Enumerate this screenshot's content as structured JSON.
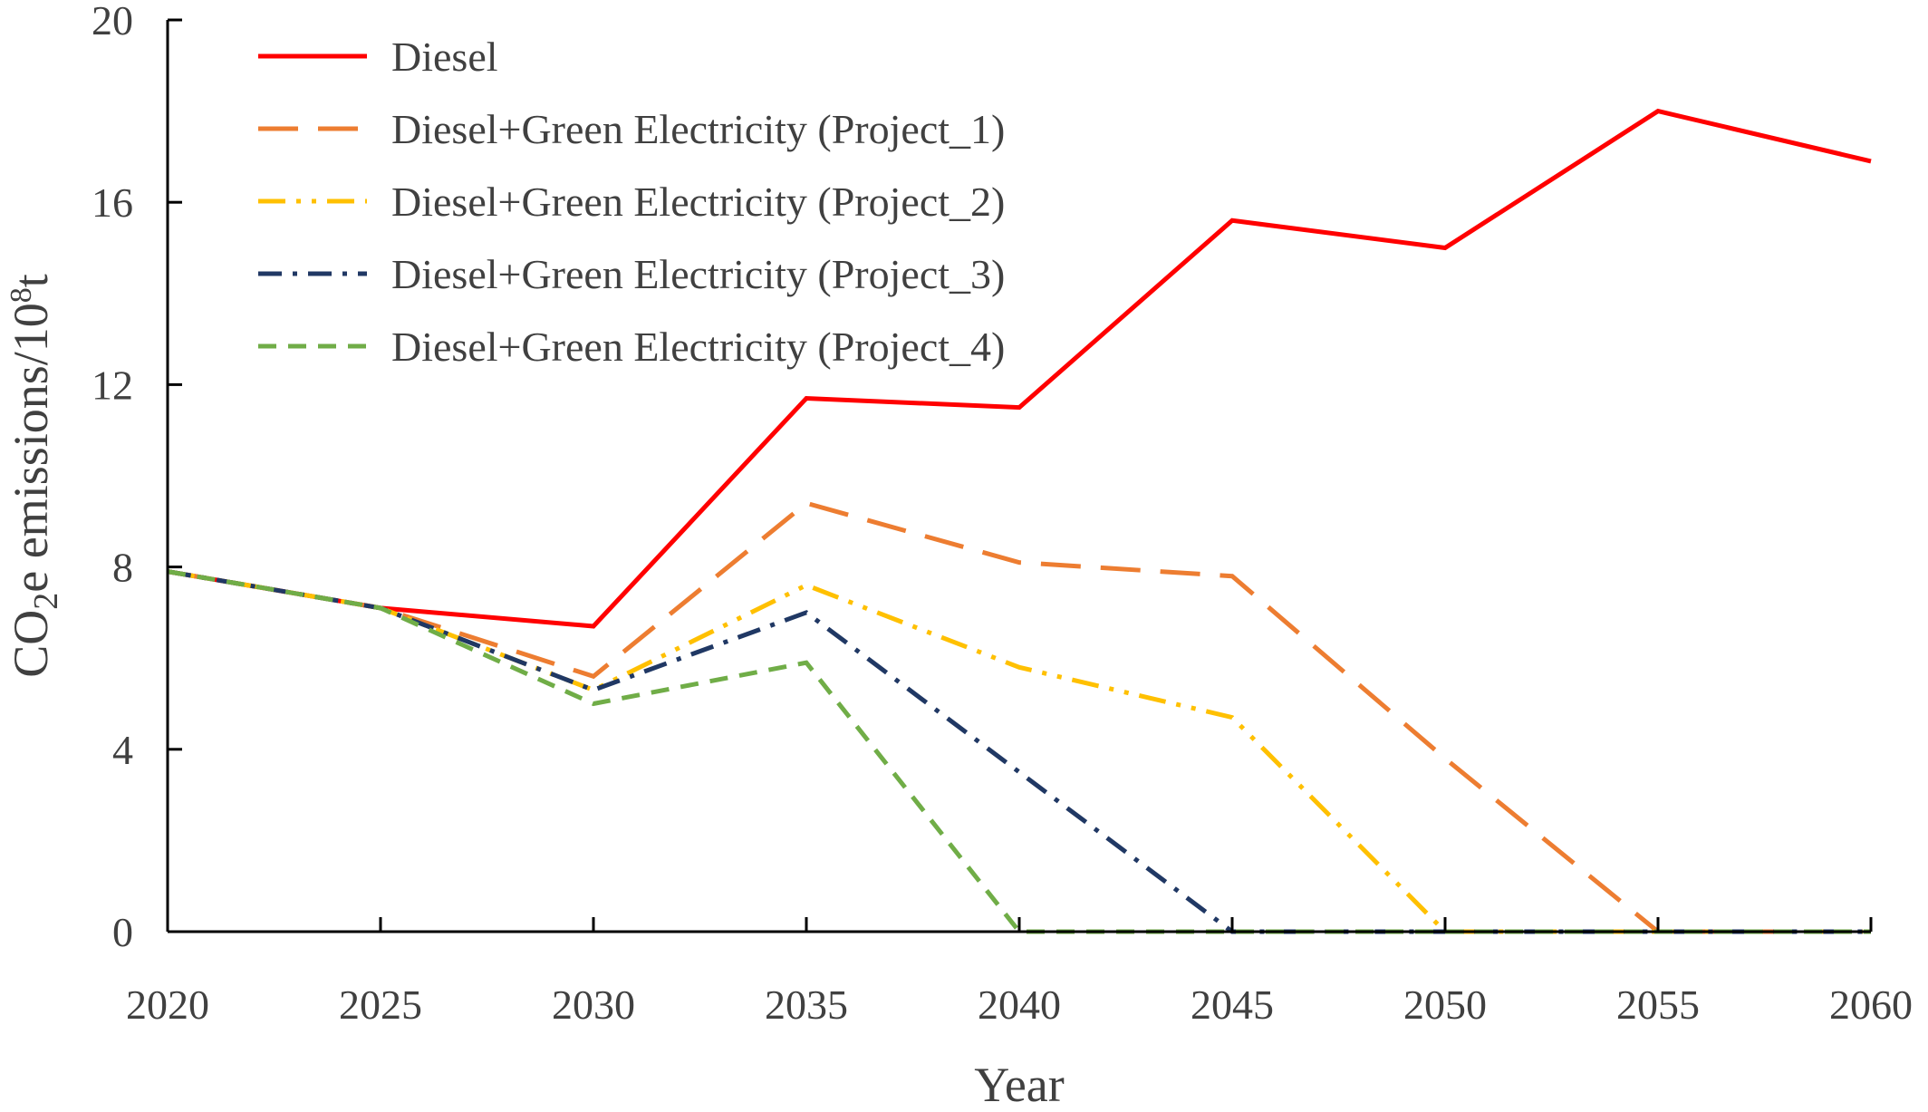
{
  "chart_data": {
    "type": "line",
    "title": "",
    "xlabel": "Year",
    "ylabel": {
      "pre": "CO",
      "sub": "2",
      "mid": "e emissions/10",
      "sup": "8",
      "post": "t"
    },
    "x": [
      2020,
      2025,
      2030,
      2035,
      2040,
      2045,
      2050,
      2055,
      2060
    ],
    "xlim": [
      2020,
      2060
    ],
    "ylim": [
      0,
      20
    ],
    "yticks": [
      0,
      4,
      8,
      12,
      16,
      20
    ],
    "grid": false,
    "legend_position": "top-left",
    "series": [
      {
        "name": "Diesel",
        "color": "#ff0000",
        "dash": "solid",
        "values": [
          7.9,
          7.1,
          6.7,
          11.7,
          11.5,
          15.6,
          15.0,
          18.0,
          16.9
        ]
      },
      {
        "name": "Diesel+Green Electricity (Project_1)",
        "color": "#ed7d31",
        "dash": "long-dash",
        "values": [
          7.9,
          7.1,
          5.6,
          9.4,
          8.1,
          7.8,
          3.8,
          0.0,
          0.0
        ]
      },
      {
        "name": "Diesel+Green Electricity (Project_2)",
        "color": "#ffc000",
        "dash": "dash-dot-dot",
        "values": [
          7.9,
          7.1,
          5.3,
          7.6,
          5.8,
          4.7,
          0.0,
          0.0,
          0.0
        ]
      },
      {
        "name": "Diesel+Green Electricity (Project_3)",
        "color": "#203864",
        "dash": "dash-dot",
        "values": [
          7.9,
          7.1,
          5.3,
          7.0,
          3.5,
          0.0,
          0.0,
          0.0,
          0.0
        ]
      },
      {
        "name": "Diesel+Green Electricity (Project_4)",
        "color": "#70ad47",
        "dash": "short-dash",
        "values": [
          7.9,
          7.1,
          5.0,
          5.9,
          0.0,
          0.0,
          0.0,
          0.0,
          0.0
        ]
      }
    ]
  }
}
